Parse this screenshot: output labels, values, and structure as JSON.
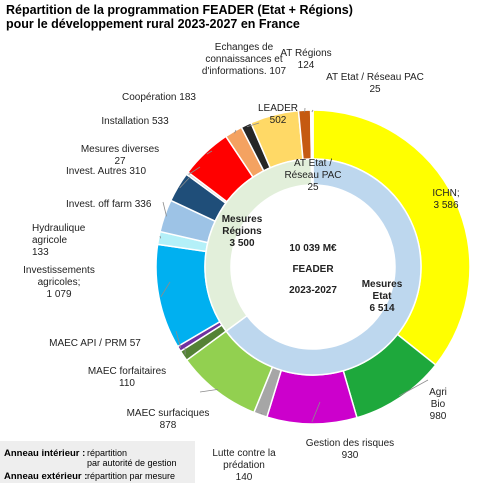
{
  "title_line1": "Répartition de la programmation FEADER (Etat + Régions)",
  "title_line2": "pour le développement rural 2023-2027 en France",
  "center": {
    "line1": "10 039 M€",
    "line2": "FEADER",
    "line3": "2023-2027",
    "color": "#e00000"
  },
  "legend": {
    "inner_label": "Anneau intérieur :",
    "inner_desc1": "répartition",
    "inner_desc2": "par autorité de gestion",
    "outer_label": "Anneau extérieur :",
    "outer_desc": "répartition par mesure"
  },
  "chart_data": {
    "type": "donut",
    "total": 10039,
    "unit": "M€",
    "inner_ring": [
      {
        "name": "Mesures Etat",
        "value": 6514,
        "color": "#bdd7ee",
        "label_lines": [
          "Mesures",
          "Etat"
        ],
        "value_text": "6 514",
        "text_color": "#1f3864"
      },
      {
        "name": "Mesures Régions",
        "value": 3500,
        "color": "#e2efda",
        "label_lines": [
          "Mesures",
          "Régions"
        ],
        "value_text": "3 500",
        "text_color": "#548235"
      },
      {
        "name": "AT Etat / Réseau PAC",
        "value": 25,
        "color": "#ffffff",
        "label_lines": [
          "AT Etat /",
          "Réseau PAC"
        ],
        "value_text": "25",
        "text_color": "#222222"
      }
    ],
    "outer_ring": [
      {
        "name": "ICHN",
        "value": 3586,
        "color": "#ffff00",
        "label_lines": [
          "ICHN;",
          "3 586"
        ]
      },
      {
        "name": "Agri Bio",
        "value": 980,
        "color": "#1ea83c",
        "label_lines": [
          "Agri",
          "Bio",
          "980"
        ]
      },
      {
        "name": "Gestion des risques",
        "value": 930,
        "color": "#cc00cc",
        "label_lines": [
          "Gestion des risques",
          "930"
        ]
      },
      {
        "name": "Lutte contre la prédation",
        "value": 140,
        "color": "#a6a6a6",
        "label_lines": [
          "Lutte contre la",
          "prédation",
          "140"
        ]
      },
      {
        "name": "MAEC surfaciques",
        "value": 878,
        "color": "#92d050",
        "label_lines": [
          "MAEC surfaciques",
          "878"
        ]
      },
      {
        "name": "MAEC forfaitaires",
        "value": 110,
        "color": "#548235",
        "label_lines": [
          "MAEC forfaitaires",
          "110"
        ]
      },
      {
        "name": "MAEC API / PRM",
        "value": 57,
        "color": "#7030a0",
        "label_lines": [
          "MAEC API / PRM   57"
        ]
      },
      {
        "name": "Investissements agricoles",
        "value": 1079,
        "color": "#00b0f0",
        "label_lines": [
          "Investissements",
          "agricoles;",
          "1 079"
        ]
      },
      {
        "name": "Hydraulique agricole",
        "value": 133,
        "color": "#b4f0f8",
        "label_lines": [
          "Hydraulique",
          "agricole",
          "133"
        ]
      },
      {
        "name": "Invest. off farm",
        "value": 336,
        "color": "#9dc3e6",
        "label_lines": [
          "Invest. off farm   336"
        ]
      },
      {
        "name": "Invest. Autres",
        "value": 310,
        "color": "#1f4e79",
        "label_lines": [
          "Invest. Autres   310"
        ]
      },
      {
        "name": "Mesures diverses",
        "value": 27,
        "color": "#d9d9d9",
        "label_lines": [
          "Mesures diverses",
          "27"
        ]
      },
      {
        "name": "Installation",
        "value": 533,
        "color": "#ff0000",
        "label_lines": [
          "Installation   533"
        ]
      },
      {
        "name": "Coopération",
        "value": 183,
        "color": "#f4a261",
        "label_lines": [
          "Coopération   183"
        ]
      },
      {
        "name": "Echanges de connaissances et d'informations",
        "value": 107,
        "color": "#262626",
        "label_lines": [
          "Echanges de",
          "connaissances et",
          "d'informations.   107"
        ]
      },
      {
        "name": "LEADER",
        "value": 502,
        "color": "#ffd966",
        "label_lines": [
          "LEADER",
          "502"
        ]
      },
      {
        "name": "AT Régions",
        "value": 124,
        "color": "#c55a11",
        "label_lines": [
          "AT Régions",
          "124"
        ]
      },
      {
        "name": "AT Etat / Réseau PAC",
        "value": 25,
        "color": "#ffffff",
        "label_lines": [
          "AT Etat / Réseau PAC",
          "25"
        ]
      }
    ]
  }
}
